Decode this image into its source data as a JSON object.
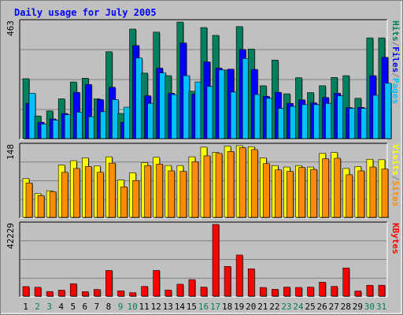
{
  "chart_data": {
    "type": "bar",
    "title": "Daily usage for July 2005",
    "categories": [
      "1",
      "2",
      "3",
      "4",
      "5",
      "6",
      "7",
      "8",
      "9",
      "10",
      "11",
      "12",
      "13",
      "14",
      "15",
      "16",
      "17",
      "18",
      "19",
      "20",
      "21",
      "22",
      "23",
      "24",
      "25",
      "26",
      "27",
      "28",
      "29",
      "30",
      "31"
    ],
    "weekend_days": [
      "2",
      "3",
      "9",
      "10",
      "16",
      "17",
      "23",
      "24",
      "30",
      "31"
    ],
    "panels": [
      {
        "id": "top",
        "max_label": "463",
        "ylim": [
          0,
          463
        ],
        "series": [
          {
            "name": "Hits",
            "color": "#00805c",
            "values": [
              238,
              90,
              110,
              158,
              225,
              240,
              158,
              345,
              100,
              435,
              260,
              423,
              250,
              463,
              188,
              441,
              410,
              272,
              445,
              356,
              210,
              312,
              178,
              242,
              183,
              210,
              243,
              250,
              160,
              400,
              400
            ]
          },
          {
            "name": "Files",
            "color": "#0000ff",
            "values": [
              140,
              65,
              78,
              100,
              184,
              215,
              155,
              204,
              65,
              370,
              170,
              280,
              180,
              380,
              177,
              305,
              280,
              276,
              354,
              275,
              168,
              184,
              140,
              154,
              142,
              163,
              180,
              123,
              124,
              250,
              323
            ]
          },
          {
            "name": "Pages",
            "color": "#00c0ff",
            "values": [
              180,
              58,
              74,
              95,
              105,
              87,
              107,
              155,
              125,
              320,
              140,
              261,
              175,
              250,
              225,
              207,
              273,
              185,
              318,
              175,
              160,
              120,
              128,
              135,
              135,
              140,
              170,
              120,
              120,
              172,
              220
            ]
          }
        ]
      },
      {
        "id": "middle",
        "max_label": "148",
        "ylim": [
          0,
          148
        ],
        "series": [
          {
            "name": "Visits",
            "color": "#ffff00",
            "values": [
              80,
              49,
              55,
              108,
              117,
              123,
              106,
              125,
              77,
              92,
              113,
              124,
              107,
              107,
              125,
              145,
              134,
              147,
              148,
              146,
              123,
              107,
              104,
              107,
              104,
              132,
              134,
              101,
              105,
              120,
              119
            ]
          },
          {
            "name": "Sites",
            "color": "#ff8c00",
            "values": [
              71,
              45,
              53,
              93,
              101,
              105,
              93,
              112,
              63,
              76,
              107,
              110,
              96,
              95,
              115,
              127,
              132,
              136,
              144,
              140,
              111,
              98,
              95,
              103,
              99,
              121,
              122,
              88,
              96,
              104,
              100
            ]
          }
        ]
      },
      {
        "id": "bottom",
        "max_label": "42229",
        "ylim": [
          0,
          42229
        ],
        "series": [
          {
            "name": "KBytes",
            "color": "#ff0000",
            "values": [
              5600,
              5200,
              2700,
              3500,
              7300,
              2600,
              3900,
              15100,
              3100,
              2000,
              5700,
              15100,
              3600,
              7000,
              9700,
              5300,
              42229,
              17500,
              24200,
              16100,
              5100,
              4000,
              5300,
              5100,
              5300,
              8200,
              5700,
              16600,
              3000,
              6400,
              6400
            ]
          }
        ]
      }
    ],
    "legend": {
      "top": [
        {
          "text": "Pages",
          "color": "#00c0ff"
        },
        {
          "text": "/",
          "color": "#808080"
        },
        {
          "text": "Files",
          "color": "#0000ff"
        },
        {
          "text": "/",
          "color": "#808080"
        },
        {
          "text": "Hits",
          "color": "#00805c"
        }
      ],
      "middle": [
        {
          "text": "Sites",
          "color": "#ff8c00"
        },
        {
          "text": "/",
          "color": "#808080"
        },
        {
          "text": "Visits",
          "color": "#ffff00"
        }
      ],
      "bottom": [
        {
          "text": "KBytes",
          "color": "#ff0000"
        }
      ]
    },
    "colors": {
      "background": "#c0c0c0",
      "title": "#0000ff",
      "weekday_label": "#000000",
      "weekend_label": "#00805c",
      "gridline": "#808080"
    },
    "grid": true,
    "legend_placement": "right"
  }
}
